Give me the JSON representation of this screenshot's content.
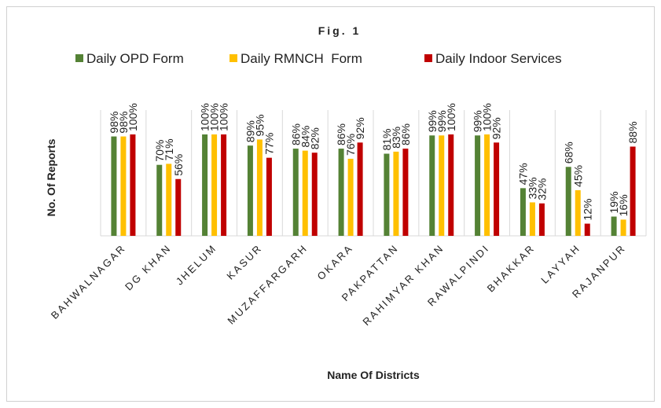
{
  "chart_data": {
    "type": "bar",
    "title": "Fig. 1",
    "x_label": "Name Of Districts",
    "y_label": "No. Of Reports",
    "categories": [
      "BAHWALNAGAR",
      "DG KHAN",
      "JHELUM",
      "KASUR",
      "MUZAFFARGARH",
      "OKARA",
      "PAKPATTAN",
      "RAHIMYAR KHAN",
      "RAWALPINDI",
      "BHAKKAR",
      "LAYYAH",
      "RAJANPUR"
    ],
    "series": [
      {
        "name": "Daily OPD Form",
        "color": "#548235",
        "values": [
          98,
          70,
          100,
          89,
          86,
          86,
          81,
          99,
          99,
          47,
          68,
          19
        ],
        "value_labels": [
          "98%",
          "70%",
          "100%",
          "89%",
          "86%",
          "86%",
          "81%",
          "99%",
          "99%",
          "47%",
          "68%",
          "19%"
        ]
      },
      {
        "name": "Daily RMNCH  Form",
        "color": "#ffc000",
        "values": [
          98,
          71,
          100,
          95,
          84,
          76,
          83,
          99,
          100,
          33,
          45,
          16
        ],
        "value_labels": [
          "98%",
          "71%",
          "100%",
          "95%",
          "84%",
          "76%",
          "83%",
          "99%",
          "100%",
          "33%",
          "45%",
          "16%"
        ]
      },
      {
        "name": "Daily Indoor Services",
        "color": "#c00000",
        "values": [
          100,
          56,
          100,
          77,
          82,
          92,
          86,
          100,
          92,
          32,
          12,
          88
        ],
        "value_labels": [
          "100%",
          "56%",
          "100%",
          "77%",
          "82%",
          "92%",
          "86%",
          "100%",
          "92%",
          "32%",
          "12%",
          "88%"
        ]
      }
    ],
    "ylim": [
      0,
      100
    ],
    "legend": "top"
  }
}
